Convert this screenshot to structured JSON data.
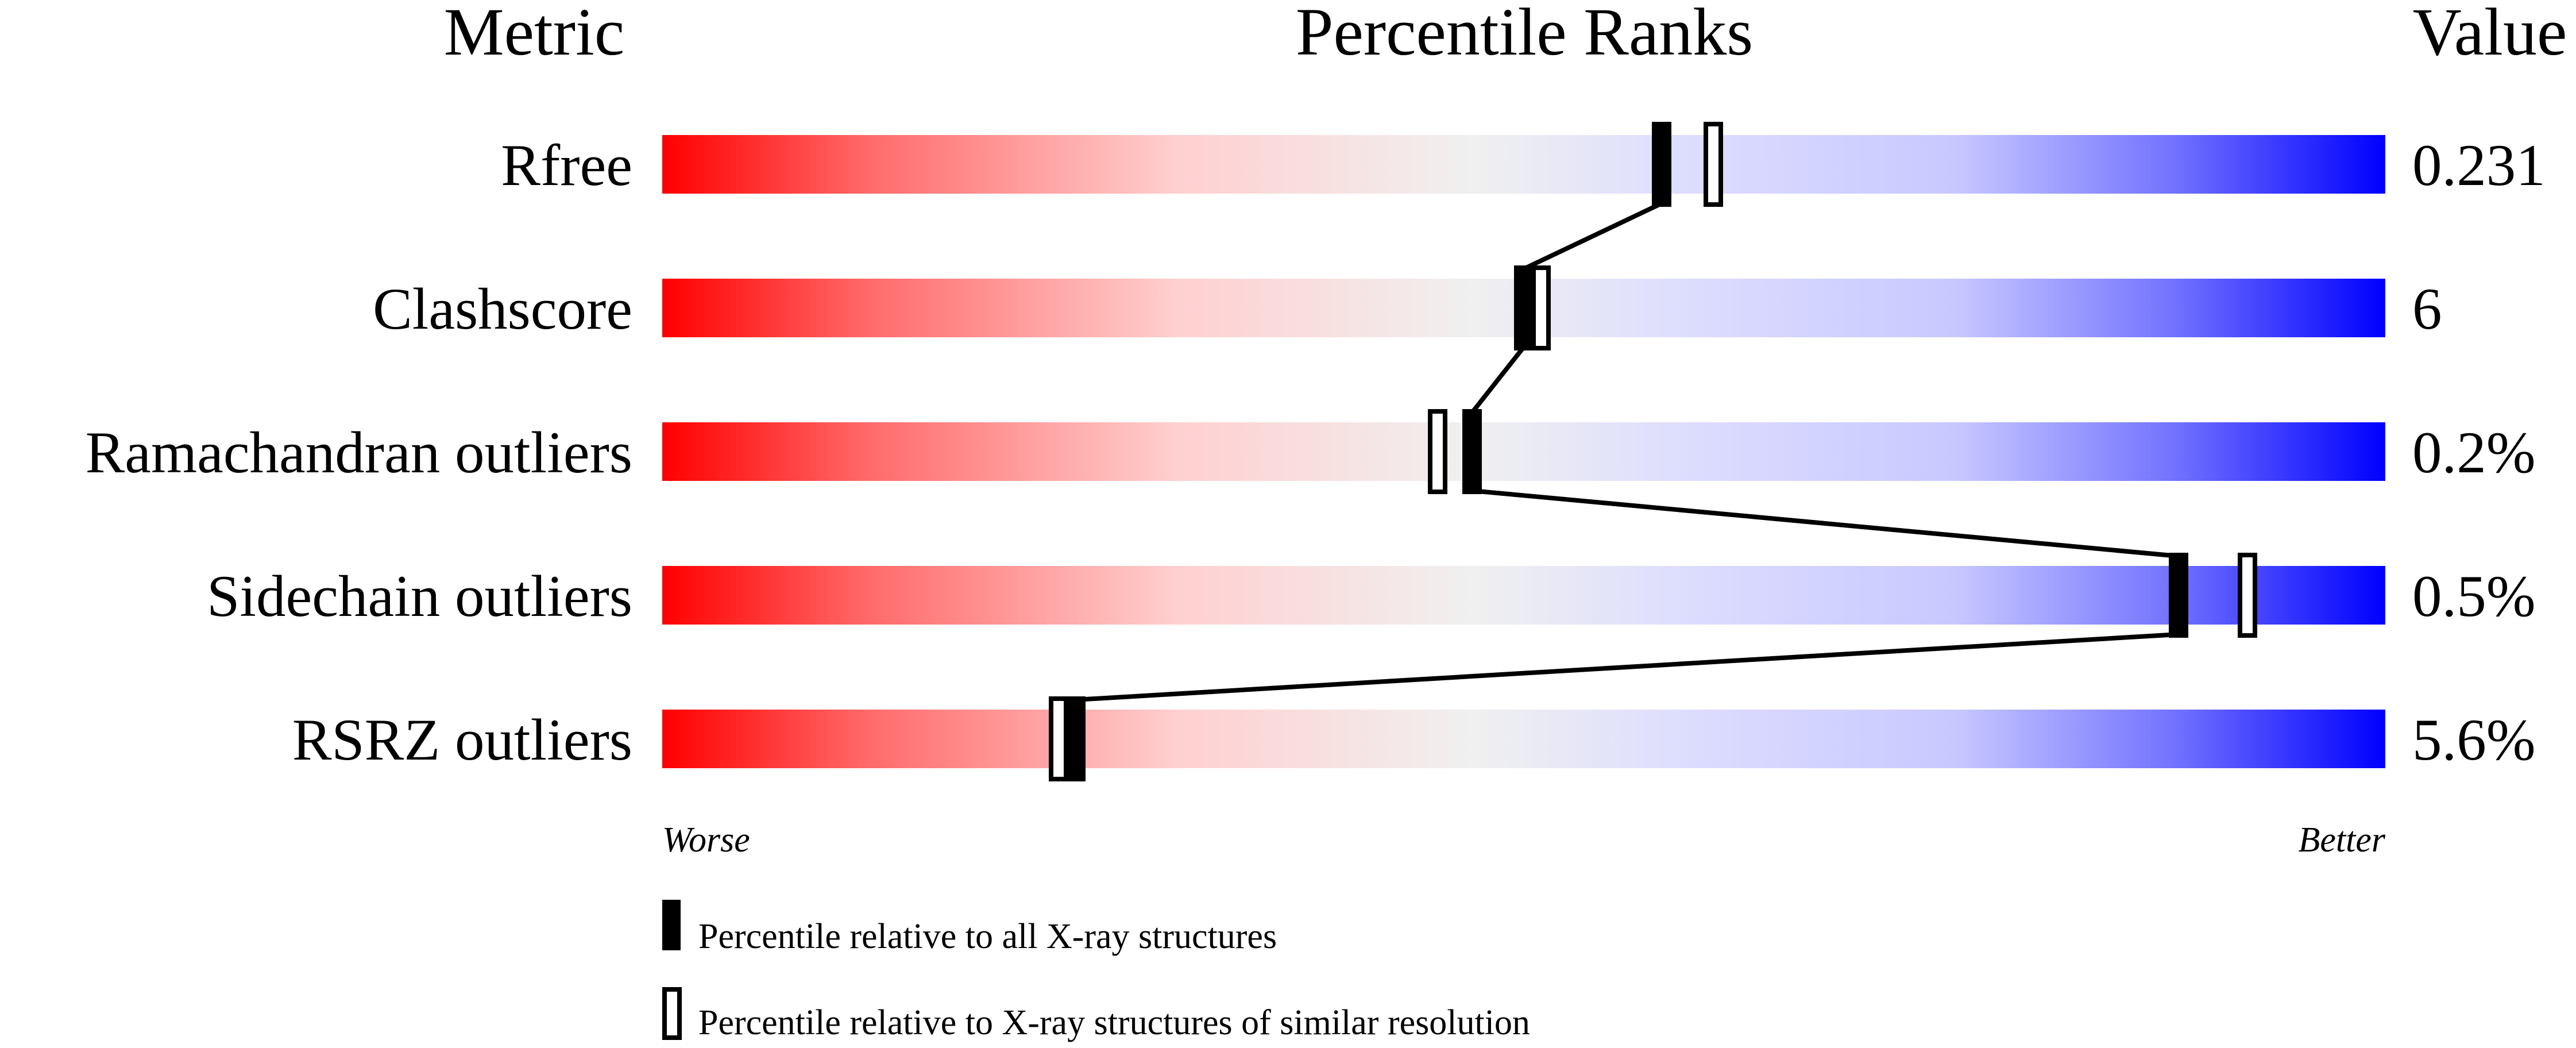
{
  "chart_data": {
    "type": "percentile-bar",
    "headers": {
      "metric": "Metric",
      "ranks": "Percentile Ranks",
      "value": "Value"
    },
    "xlim": [
      0,
      100
    ],
    "axis_labels": {
      "left": "Worse",
      "right": "Better"
    },
    "metrics": [
      {
        "name": "Rfree",
        "value": "0.231",
        "percentile_all": 58,
        "percentile_similar": 61
      },
      {
        "name": "Clashscore",
        "value": "6",
        "percentile_all": 50,
        "percentile_similar": 51
      },
      {
        "name": "Ramachandran outliers",
        "value": "0.2%",
        "percentile_all": 47,
        "percentile_similar": 45
      },
      {
        "name": "Sidechain outliers",
        "value": "0.5%",
        "percentile_all": 88,
        "percentile_similar": 92
      },
      {
        "name": "RSRZ outliers",
        "value": "5.6%",
        "percentile_all": 24,
        "percentile_similar": 23
      }
    ],
    "legend": [
      {
        "marker": "filled",
        "label": "Percentile relative to all X-ray structures"
      },
      {
        "marker": "open",
        "label": "Percentile relative to X-ray structures of similar resolution"
      }
    ],
    "colors": {
      "worse": "#ff0000",
      "middle": "#f0f0f0",
      "better": "#0000ff"
    }
  }
}
